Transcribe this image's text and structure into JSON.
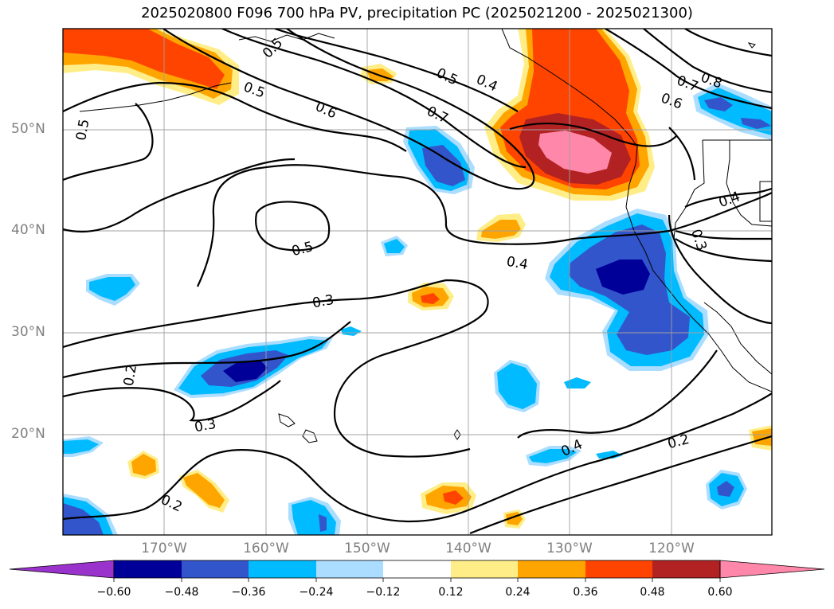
{
  "title": "2025020800 F096 700 hPa PV, precipitation PC (2025021200 - 2025021300)",
  "lat_labels": [
    "50°N",
    "40°N",
    "30°N",
    "20°N"
  ],
  "lon_labels": [
    "170°W",
    "160°W",
    "150°W",
    "140°W",
    "130°W",
    "120°W"
  ],
  "colorbar": {
    "ticks": [
      "−0.60",
      "−0.48",
      "−0.36",
      "−0.24",
      "−0.12",
      "0.12",
      "0.24",
      "0.36",
      "0.48",
      "0.60"
    ],
    "colors": [
      "#9933cc",
      "#000099",
      "#3355cc",
      "#00bbff",
      "#aaddff",
      "#ffffff",
      "#ffee88",
      "#ffa500",
      "#ff4400",
      "#b22222",
      "#ff88aa"
    ]
  },
  "contour_labels": [
    "0.5",
    "0.5",
    "0.6",
    "0.7",
    "0.5",
    "0.4",
    "0.7",
    "0.8",
    "0.6",
    "0.5",
    "0.5",
    "0.4",
    "0.3",
    "0.4",
    "0.3",
    "0.2",
    "0.3",
    "0.2",
    "0.4",
    "0.2"
  ]
}
